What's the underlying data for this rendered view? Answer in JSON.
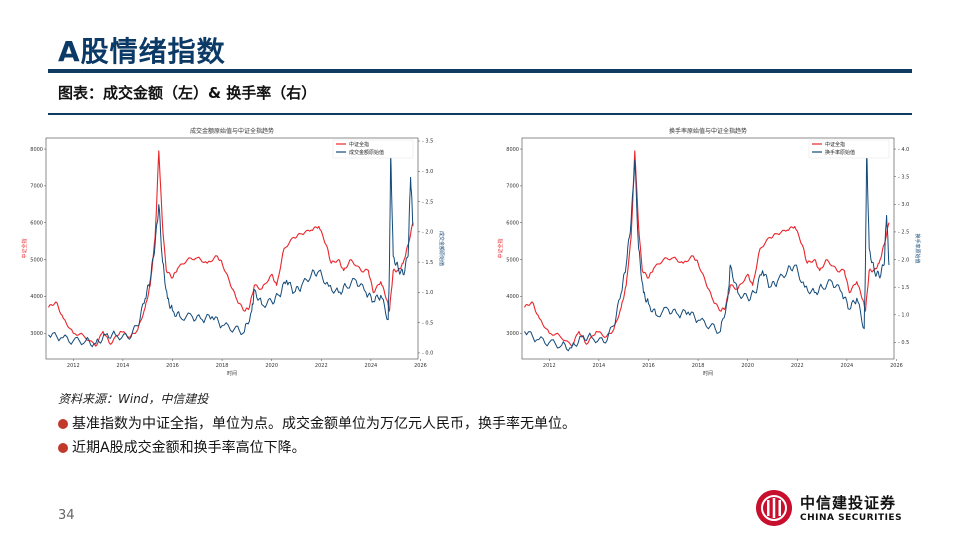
{
  "page": {
    "title": "A股情绪指数",
    "subtitle": "图表：成交金额（左）& 换手率（右）",
    "source": "资料来源：Wind，中信建投",
    "bullets": [
      "基准指数为中证全指，单位为点。成交金额单位为万亿元人民币，换手率无单位。",
      "近期A股成交金额和换手率高位下降。"
    ],
    "page_number": "34",
    "logo": {
      "cn": "中信建投证券",
      "en": "CHINA SECURITIES"
    }
  },
  "colors": {
    "index_line": "#e8262b",
    "volume_line": "#134a79",
    "accent": "#0f3b61",
    "bullet": "#c0392b"
  },
  "chart_data": [
    {
      "type": "line",
      "title": "成交金额原始值与中证全指趋势",
      "xlabel": "时间",
      "ylabel_left": "中证全指",
      "ylabel_right": "成交金额原始值",
      "x_ticks": [
        "2012",
        "2014",
        "2016",
        "2018",
        "2020",
        "2022",
        "2024",
        "2026"
      ],
      "y_left_ticks": [
        "3000",
        "4000",
        "5000",
        "6000",
        "7000",
        "8000"
      ],
      "y_right_ticks": [
        "0.0",
        "0.5",
        "1.0",
        "1.5",
        "2.0",
        "2.5",
        "3.0",
        "3.5"
      ],
      "y_left_lim": [
        2300,
        8300
      ],
      "y_right_lim": [
        -0.1,
        3.55
      ],
      "x_lim": [
        2010.9,
        2025.9
      ],
      "legend": "top-right",
      "series": [
        {
          "name": "中证全指",
          "axis": "left",
          "x": [
            2011.0,
            2011.3,
            2011.6,
            2012.0,
            2012.4,
            2012.9,
            2013.2,
            2013.5,
            2013.9,
            2014.3,
            2014.6,
            2014.9,
            2015.1,
            2015.3,
            2015.45,
            2015.6,
            2015.75,
            2016.0,
            2016.2,
            2016.6,
            2017.0,
            2017.4,
            2017.8,
            2018.0,
            2018.3,
            2018.6,
            2018.9,
            2019.1,
            2019.3,
            2019.6,
            2020.0,
            2020.2,
            2020.5,
            2020.9,
            2021.2,
            2021.6,
            2021.9,
            2022.2,
            2022.4,
            2022.7,
            2022.9,
            2023.2,
            2023.6,
            2023.9,
            2024.1,
            2024.4,
            2024.65,
            2024.75,
            2024.9,
            2025.1,
            2025.3,
            2025.5,
            2025.7
          ],
          "values": [
            3700,
            3850,
            3400,
            3000,
            2950,
            2650,
            3050,
            2700,
            3050,
            2900,
            3100,
            3700,
            4300,
            5600,
            7950,
            5900,
            4700,
            4500,
            4750,
            5000,
            5050,
            4900,
            5100,
            4900,
            4400,
            3900,
            3600,
            3700,
            4300,
            4200,
            4600,
            4300,
            5300,
            5600,
            5700,
            5800,
            5900,
            5400,
            4900,
            5000,
            4700,
            5000,
            4700,
            4700,
            4100,
            4400,
            3900,
            3600,
            4700,
            4700,
            4900,
            5400,
            6000
          ]
        },
        {
          "name": "成交金额原始值",
          "axis": "right",
          "x": [
            2011.0,
            2011.5,
            2012.0,
            2012.5,
            2012.9,
            2013.3,
            2013.7,
            2014.2,
            2014.6,
            2014.9,
            2015.1,
            2015.3,
            2015.45,
            2015.6,
            2015.8,
            2016.0,
            2016.3,
            2016.8,
            2017.2,
            2017.6,
            2018.0,
            2018.5,
            2018.9,
            2019.2,
            2019.3,
            2019.6,
            2020.0,
            2020.3,
            2020.6,
            2020.9,
            2021.2,
            2021.6,
            2021.9,
            2022.3,
            2022.7,
            2023.0,
            2023.4,
            2023.8,
            2024.1,
            2024.4,
            2024.7,
            2024.75,
            2024.8,
            2024.9,
            2025.1,
            2025.3,
            2025.5,
            2025.6,
            2025.7
          ],
          "values": [
            0.3,
            0.25,
            0.2,
            0.2,
            0.15,
            0.3,
            0.3,
            0.25,
            0.45,
            0.9,
            1.2,
            1.8,
            2.45,
            1.5,
            0.9,
            0.7,
            0.6,
            0.6,
            0.55,
            0.6,
            0.45,
            0.4,
            0.35,
            0.7,
            1.05,
            0.8,
            0.85,
            0.95,
            1.2,
            1.0,
            1.1,
            1.3,
            1.35,
            1.1,
            1.0,
            1.1,
            1.2,
            1.0,
            0.85,
            0.95,
            0.55,
            1.5,
            3.3,
            1.6,
            1.4,
            1.3,
            1.6,
            2.9,
            2.1
          ]
        }
      ]
    },
    {
      "type": "line",
      "title": "换手率原始值与中证全指趋势",
      "xlabel": "时间",
      "ylabel_left": "中证全指",
      "ylabel_right": "换手率原始值",
      "x_ticks": [
        "2012",
        "2014",
        "2016",
        "2018",
        "2020",
        "2022",
        "2024",
        "2026"
      ],
      "y_left_ticks": [
        "3000",
        "4000",
        "5000",
        "6000",
        "7000",
        "8000"
      ],
      "y_right_ticks": [
        "0.5",
        "1.0",
        "1.5",
        "2.0",
        "2.5",
        "3.0",
        "3.5",
        "4.0"
      ],
      "y_left_lim": [
        2300,
        8300
      ],
      "y_right_lim": [
        0.2,
        4.2
      ],
      "x_lim": [
        2010.9,
        2025.9
      ],
      "legend": "top-right",
      "series": [
        {
          "name": "中证全指",
          "axis": "left",
          "x": [
            2011.0,
            2011.3,
            2011.6,
            2012.0,
            2012.4,
            2012.9,
            2013.2,
            2013.5,
            2013.9,
            2014.3,
            2014.6,
            2014.9,
            2015.1,
            2015.3,
            2015.45,
            2015.6,
            2015.75,
            2016.0,
            2016.2,
            2016.6,
            2017.0,
            2017.4,
            2017.8,
            2018.0,
            2018.3,
            2018.6,
            2018.9,
            2019.1,
            2019.3,
            2019.6,
            2020.0,
            2020.2,
            2020.5,
            2020.9,
            2021.2,
            2021.6,
            2021.9,
            2022.2,
            2022.4,
            2022.7,
            2022.9,
            2023.2,
            2023.6,
            2023.9,
            2024.1,
            2024.4,
            2024.65,
            2024.75,
            2024.9,
            2025.1,
            2025.3,
            2025.5,
            2025.7
          ],
          "values": [
            3700,
            3850,
            3400,
            3000,
            2950,
            2650,
            3050,
            2700,
            3050,
            2900,
            3100,
            3700,
            4300,
            5600,
            7950,
            5900,
            4700,
            4500,
            4750,
            5000,
            5050,
            4900,
            5100,
            4900,
            4400,
            3900,
            3600,
            3700,
            4300,
            4200,
            4600,
            4300,
            5300,
            5600,
            5700,
            5800,
            5900,
            5400,
            4900,
            5000,
            4700,
            5000,
            4700,
            4700,
            4100,
            4400,
            3900,
            3600,
            4700,
            4700,
            4900,
            5400,
            6000
          ]
        },
        {
          "name": "换手率原始值",
          "axis": "right",
          "x": [
            2011.0,
            2011.5,
            2012.0,
            2012.5,
            2012.9,
            2013.3,
            2013.7,
            2014.2,
            2014.6,
            2014.9,
            2015.1,
            2015.3,
            2015.45,
            2015.6,
            2015.8,
            2016.0,
            2016.3,
            2016.8,
            2017.2,
            2017.6,
            2018.0,
            2018.5,
            2018.9,
            2019.2,
            2019.3,
            2019.6,
            2020.0,
            2020.3,
            2020.6,
            2020.9,
            2021.2,
            2021.6,
            2021.9,
            2022.3,
            2022.7,
            2023.0,
            2023.4,
            2023.8,
            2024.1,
            2024.4,
            2024.7,
            2024.75,
            2024.8,
            2024.9,
            2025.1,
            2025.3,
            2025.5,
            2025.6,
            2025.7
          ],
          "values": [
            0.7,
            0.55,
            0.5,
            0.45,
            0.4,
            0.6,
            0.6,
            0.5,
            0.8,
            1.4,
            1.9,
            2.7,
            3.8,
            2.2,
            1.4,
            1.2,
            1.0,
            1.1,
            1.0,
            1.05,
            0.9,
            0.8,
            0.7,
            1.3,
            1.9,
            1.4,
            1.3,
            1.4,
            1.8,
            1.5,
            1.6,
            1.8,
            1.9,
            1.5,
            1.4,
            1.5,
            1.6,
            1.4,
            1.1,
            1.3,
            0.75,
            2.0,
            4.0,
            2.2,
            1.8,
            1.7,
            1.9,
            2.8,
            1.9
          ]
        }
      ]
    }
  ]
}
